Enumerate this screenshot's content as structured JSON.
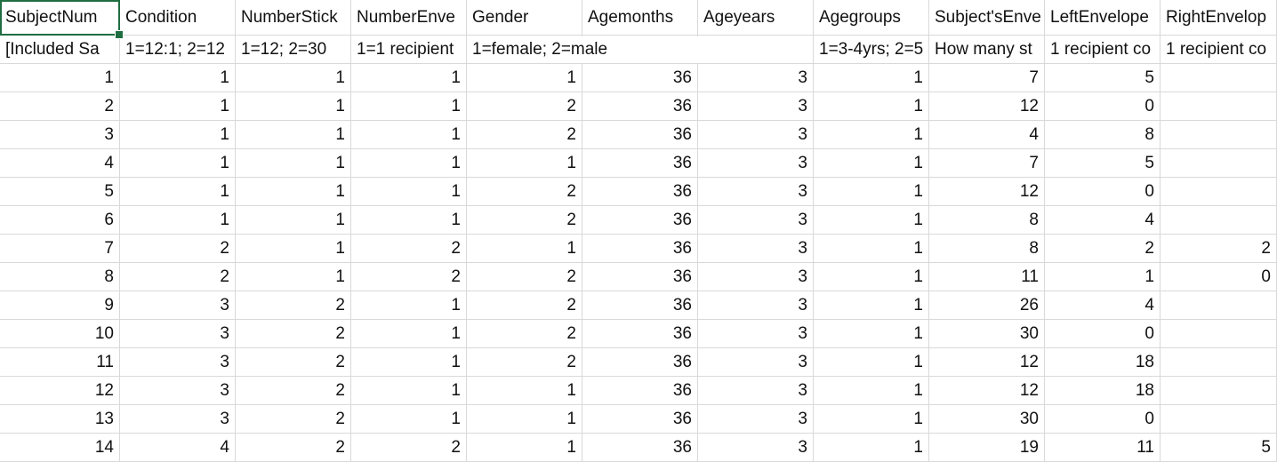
{
  "table": {
    "header": [
      "SubjectNum",
      "Condition",
      "NumberStick",
      "NumberEnve",
      "Gender",
      "Agemonths",
      "Ageyears",
      "Agegroups",
      "Subject'sEnve",
      "LeftEnvelope",
      "RightEnvelop"
    ],
    "notes": [
      "[Included Sa",
      "1=12:1; 2=12",
      "1=12; 2=30",
      "1=1 recipient",
      "1=female; 2=male",
      null,
      null,
      "1=3-4yrs; 2=5",
      "How many st",
      "1 recipient co",
      "1 recipient co"
    ],
    "rows": [
      [
        1,
        1,
        1,
        1,
        1,
        36,
        3,
        1,
        7,
        5,
        null
      ],
      [
        2,
        1,
        1,
        1,
        2,
        36,
        3,
        1,
        12,
        0,
        null
      ],
      [
        3,
        1,
        1,
        1,
        2,
        36,
        3,
        1,
        4,
        8,
        null
      ],
      [
        4,
        1,
        1,
        1,
        1,
        36,
        3,
        1,
        7,
        5,
        null
      ],
      [
        5,
        1,
        1,
        1,
        2,
        36,
        3,
        1,
        12,
        0,
        null
      ],
      [
        6,
        1,
        1,
        1,
        2,
        36,
        3,
        1,
        8,
        4,
        null
      ],
      [
        7,
        2,
        1,
        2,
        1,
        36,
        3,
        1,
        8,
        2,
        2
      ],
      [
        8,
        2,
        1,
        2,
        2,
        36,
        3,
        1,
        11,
        1,
        0
      ],
      [
        9,
        3,
        2,
        1,
        2,
        36,
        3,
        1,
        26,
        4,
        null
      ],
      [
        10,
        3,
        2,
        1,
        2,
        36,
        3,
        1,
        30,
        0,
        null
      ],
      [
        11,
        3,
        2,
        1,
        2,
        36,
        3,
        1,
        12,
        18,
        null
      ],
      [
        12,
        3,
        2,
        1,
        1,
        36,
        3,
        1,
        12,
        18,
        null
      ],
      [
        13,
        3,
        2,
        1,
        1,
        36,
        3,
        1,
        30,
        0,
        null
      ],
      [
        14,
        4,
        2,
        2,
        1,
        36,
        3,
        1,
        19,
        11,
        5
      ]
    ]
  }
}
